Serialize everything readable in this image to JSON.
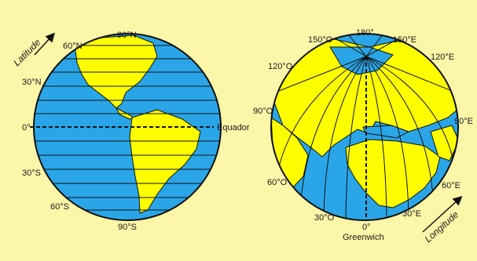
{
  "colors": {
    "background": "#fcf6a8",
    "ocean": "#2aa6e8",
    "land": "#fffe00",
    "lines": "#111111"
  },
  "latitude_globe": {
    "axis_label": "Latitude",
    "labels": {
      "n90": "90°N",
      "n60": "60°N",
      "n30": "30°N",
      "zero": "0°",
      "s30": "30°S",
      "s60": "60°S",
      "s90": "90°S"
    },
    "equator_label": "Equador"
  },
  "longitude_globe": {
    "axis_label": "Longitude",
    "labels": {
      "w150": "150°O",
      "e180": "180°",
      "e150": "150°E",
      "w120": "120°O",
      "e120": "120°E",
      "w90": "90°O",
      "e90": "90°E",
      "w60": "60°O",
      "e60": "60°E",
      "w30": "30°O",
      "zero": "0°",
      "e30": "30°E"
    },
    "meridian_label": "Greenwich"
  },
  "icons": [
    "latitude-arrow-icon",
    "longitude-arrow-icon"
  ]
}
